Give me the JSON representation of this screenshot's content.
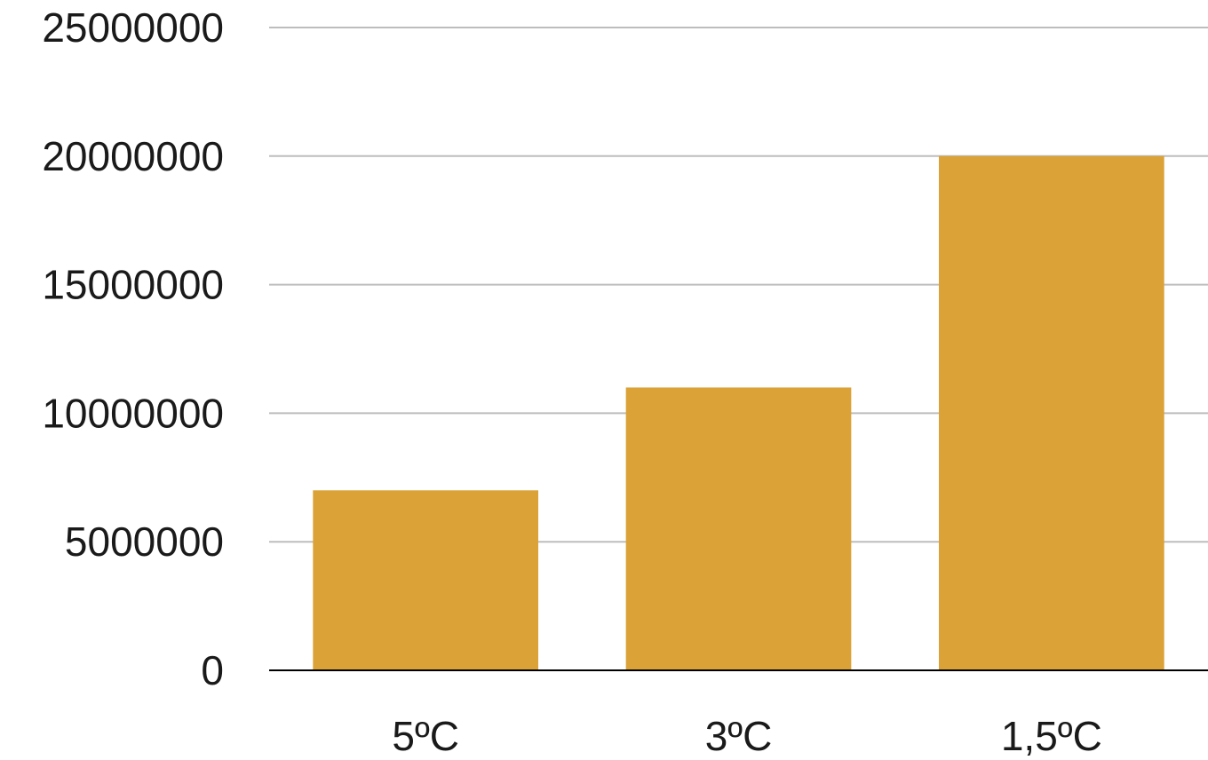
{
  "chart_data": {
    "type": "bar",
    "title": "",
    "xlabel": "",
    "ylabel": "",
    "categories": [
      "5ºC",
      "3ºC",
      "1,5ºC"
    ],
    "values": [
      7000000,
      11000000,
      20000000
    ],
    "ylim": [
      0,
      25000000
    ],
    "yticks": [
      "0",
      "5000000",
      "10000000",
      "15000000",
      "20000000",
      "25000000"
    ],
    "grid": true,
    "legend": "none",
    "colors": {
      "bar": "#DBA237",
      "grid": "#BDBDBD",
      "axis": "#000000"
    }
  }
}
